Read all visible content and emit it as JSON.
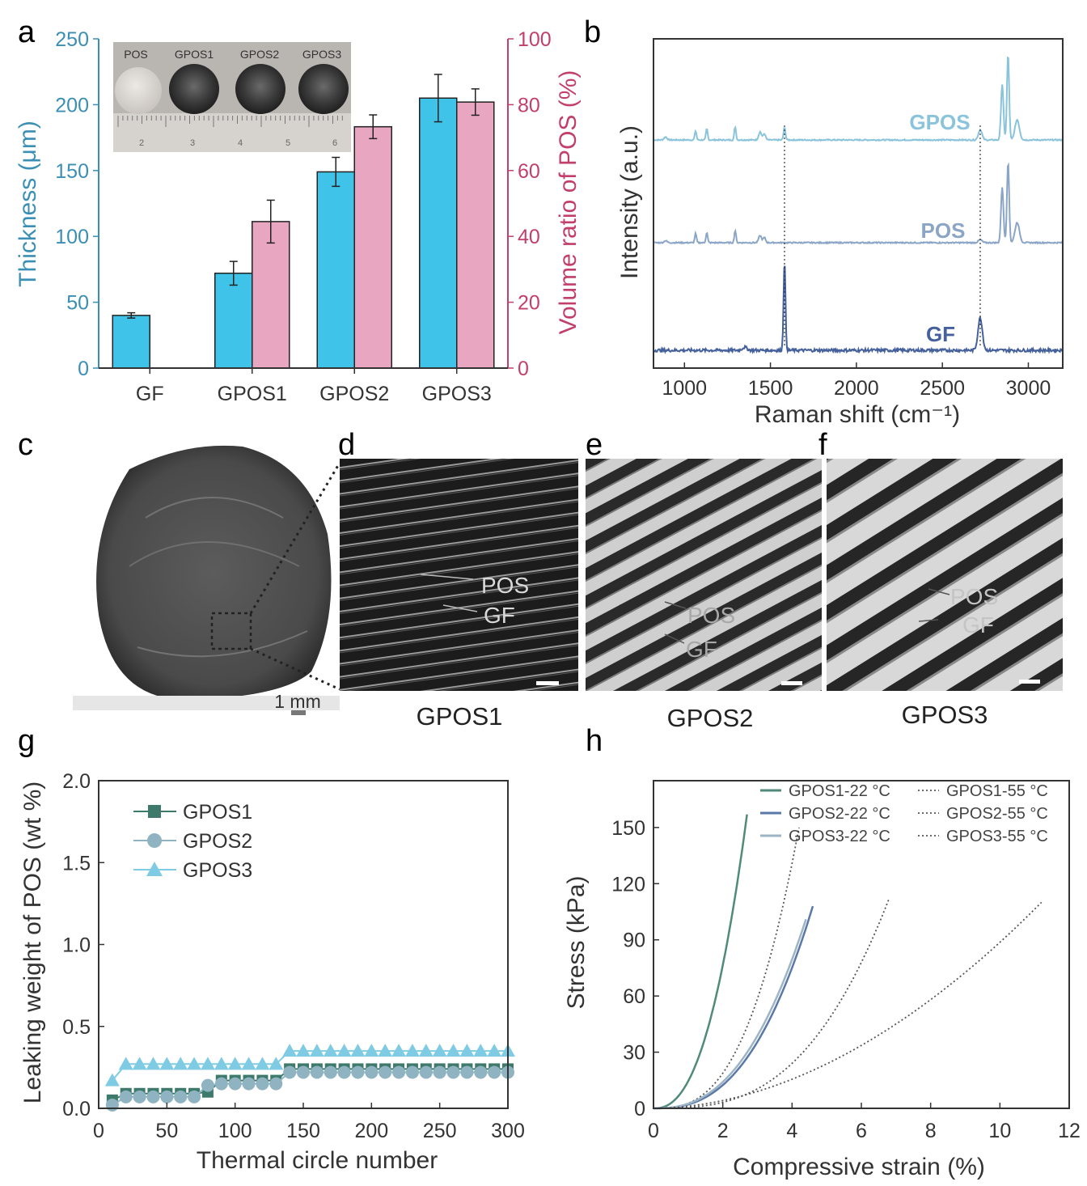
{
  "panel_letters": [
    "a",
    "b",
    "c",
    "d",
    "e",
    "f",
    "g",
    "h"
  ],
  "colors": {
    "thickness": "#3fc3e8",
    "volume": "#e8a6c0",
    "left_axis": "#3b8fb4",
    "right_axis": "#c23f6b",
    "ram_gpos": "#8ac3dc",
    "ram_pos": "#8ba5c7",
    "ram_gf": "#45619d",
    "g_gpos1": "#3e7a6b",
    "g_gpos2": "#8fb3c1",
    "g_gpos3": "#7fcbe3",
    "h_gpos1": "#4f8a7a",
    "h_gpos2": "#5a78a8",
    "h_gpos3": "#9db4c4"
  },
  "inset_a": {
    "labels": [
      "POS",
      "GPOS1",
      "GPOS2",
      "GPOS3"
    ],
    "ruler_numbers": [
      "2",
      "3",
      "4",
      "5",
      "6"
    ]
  },
  "panel_c": {
    "scale_label": "1 mm"
  },
  "sem_panels": [
    {
      "letter": "d",
      "caption": "GPOS1",
      "label_pos": "POS",
      "label_gf": "GF"
    },
    {
      "letter": "e",
      "caption": "GPOS2",
      "label_pos": "POS",
      "label_gf": "GF"
    },
    {
      "letter": "f",
      "caption": "GPOS3",
      "label_pos": "POS",
      "label_gf": "GF"
    }
  ],
  "chart_data": [
    {
      "id": "a",
      "type": "bar",
      "categories": [
        "GF",
        "GPOS1",
        "GPOS2",
        "GPOS3"
      ],
      "series": [
        {
          "name": "Thickness",
          "axis": "left",
          "values": [
            40,
            72,
            149,
            205
          ],
          "errors": [
            2,
            9,
            11,
            18
          ]
        },
        {
          "name": "Volume ratio of POS",
          "axis": "right",
          "values": [
            null,
            44.5,
            73.3,
            80.8
          ],
          "errors": [
            null,
            6.5,
            3.6,
            4.0
          ]
        }
      ],
      "ylabel": "Thickness (μm)",
      "y2label": "Volume ratio of POS (%)",
      "ylim": [
        0,
        250
      ],
      "yticks": [
        0,
        50,
        100,
        150,
        200,
        250
      ],
      "y2lim": [
        0,
        100
      ],
      "y2ticks": [
        0,
        20,
        40,
        60,
        80,
        100
      ]
    },
    {
      "id": "b",
      "type": "line",
      "xlabel": "Raman shift (cm⁻¹)",
      "ylabel": "Intensity (a.u.)",
      "xlim": [
        820,
        3200
      ],
      "xticks": [
        1000,
        1500,
        2000,
        2500,
        3000
      ],
      "series": [
        {
          "name": "GPOS",
          "offset": 2.0,
          "peaks": [
            [
              890,
              0.03,
              12
            ],
            [
              1065,
              0.09,
              7
            ],
            [
              1130,
              0.11,
              7
            ],
            [
              1295,
              0.13,
              7
            ],
            [
              1440,
              0.08,
              12
            ],
            [
              1465,
              0.06,
              10
            ],
            [
              1582,
              0.12,
              8
            ],
            [
              2720,
              0.1,
              15
            ],
            [
              2848,
              0.55,
              10
            ],
            [
              2882,
              0.85,
              9
            ],
            [
              2935,
              0.2,
              18
            ]
          ]
        },
        {
          "name": "POS",
          "offset": 1.0,
          "peaks": [
            [
              890,
              0.02,
              12
            ],
            [
              1065,
              0.09,
              7
            ],
            [
              1130,
              0.1,
              7
            ],
            [
              1295,
              0.12,
              7
            ],
            [
              1440,
              0.07,
              12
            ],
            [
              1465,
              0.05,
              10
            ],
            [
              2720,
              0.03,
              15
            ],
            [
              2848,
              0.55,
              10
            ],
            [
              2882,
              0.8,
              9
            ],
            [
              2935,
              0.2,
              18
            ]
          ]
        },
        {
          "name": "GF",
          "offset": 0.0,
          "peaks": [
            [
              1350,
              0.03,
              20
            ],
            [
              1582,
              0.88,
              8
            ],
            [
              2720,
              0.32,
              18
            ]
          ]
        }
      ],
      "reference_lines": [
        1582,
        2720
      ]
    },
    {
      "id": "g",
      "type": "line",
      "xlabel": "Thermal circle number",
      "ylabel": "Leaking weight of POS (wt %)",
      "xlim": [
        0,
        300
      ],
      "xticks": [
        0,
        50,
        100,
        150,
        200,
        250,
        300
      ],
      "ylim": [
        0,
        2.0
      ],
      "yticks": [
        0.0,
        0.5,
        1.0,
        1.5,
        2.0
      ],
      "ytick_labels": [
        "0.0",
        "0.5",
        "1.0",
        "1.5",
        "2.0"
      ],
      "series": [
        {
          "name": "GPOS1",
          "marker": "square",
          "steps": [
            [
              10,
              0.05
            ],
            [
              20,
              0.09
            ],
            [
              80,
              0.1
            ],
            [
              90,
              0.17
            ],
            [
              140,
              0.24
            ],
            [
              300,
              0.24
            ]
          ]
        },
        {
          "name": "GPOS2",
          "marker": "circle",
          "steps": [
            [
              10,
              0.02
            ],
            [
              20,
              0.07
            ],
            [
              80,
              0.14
            ],
            [
              90,
              0.15
            ],
            [
              140,
              0.22
            ],
            [
              300,
              0.22
            ]
          ]
        },
        {
          "name": "GPOS3",
          "marker": "triangle",
          "steps": [
            [
              10,
              0.17
            ],
            [
              20,
              0.27
            ],
            [
              140,
              0.35
            ],
            [
              300,
              0.35
            ]
          ]
        }
      ]
    },
    {
      "id": "h",
      "type": "line",
      "xlabel": "Compressive strain (%)",
      "ylabel": "Stress (kPa)",
      "xlim": [
        0,
        12
      ],
      "xticks": [
        0,
        2,
        4,
        6,
        8,
        10,
        12
      ],
      "ylim": [
        0,
        175
      ],
      "yticks": [
        0,
        30,
        60,
        90,
        120,
        150
      ],
      "legend": [
        "GPOS1-22 °C",
        "GPOS1-55 °C",
        "GPOS2-22 °C",
        "GPOS2-55 °C",
        "GPOS3-22 °C",
        "GPOS3-55 °C"
      ],
      "series": [
        {
          "name": "GPOS1-22 °C",
          "style": "solid",
          "color_key": "h_gpos1",
          "max_strain": 2.7,
          "max_stress": 157,
          "exp": 2.4
        },
        {
          "name": "GPOS1-55 °C",
          "style": "dotted",
          "color_key": "dotted",
          "max_strain": 4.2,
          "max_stress": 150,
          "exp": 2.8
        },
        {
          "name": "GPOS2-22 °C",
          "style": "solid",
          "color_key": "h_gpos2",
          "max_strain": 4.6,
          "max_stress": 108,
          "exp": 2.6
        },
        {
          "name": "GPOS2-55 °C",
          "style": "dotted",
          "color_key": "dotted",
          "max_strain": 6.8,
          "max_stress": 112,
          "exp": 2.9
        },
        {
          "name": "GPOS3-22 °C",
          "style": "solid",
          "color_key": "h_gpos3",
          "max_strain": 4.4,
          "max_stress": 101,
          "exp": 2.5
        },
        {
          "name": "GPOS3-55 °C",
          "style": "dotted",
          "color_key": "dotted",
          "max_strain": 11.2,
          "max_stress": 110,
          "exp": 1.9
        }
      ]
    }
  ]
}
